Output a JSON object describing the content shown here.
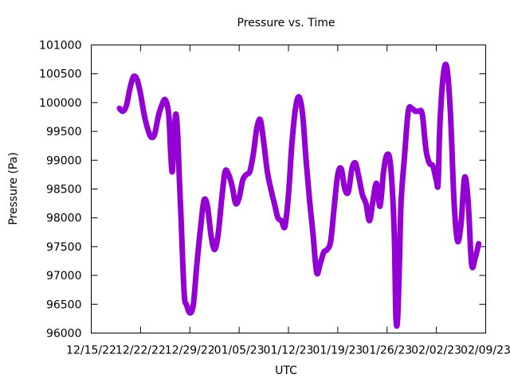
{
  "chart_data": {
    "type": "line",
    "title": "Pressure vs. Time",
    "xlabel": "UTC",
    "ylabel": "Pressure (Pa)",
    "ylim": [
      96000,
      101000
    ],
    "yticks": [
      96000,
      96500,
      97000,
      97500,
      98000,
      98500,
      99000,
      99500,
      100000,
      100500,
      101000
    ],
    "xlim": [
      "2022-12-15",
      "2023-02-09"
    ],
    "xticks": [
      {
        "date": "2022-12-15",
        "label": "12/15/22"
      },
      {
        "date": "2022-12-22",
        "label": "12/22/22"
      },
      {
        "date": "2022-12-29",
        "label": "12/29/22"
      },
      {
        "date": "2023-01-05",
        "label": "01/05/23"
      },
      {
        "date": "2023-01-12",
        "label": "01/12/23"
      },
      {
        "date": "2023-01-19",
        "label": "01/19/23"
      },
      {
        "date": "2023-01-26",
        "label": "01/26/23"
      },
      {
        "date": "2023-02-02",
        "label": "02/02/23"
      },
      {
        "date": "2023-02-09",
        "label": "02/09/23"
      }
    ],
    "grid": false,
    "series": [
      {
        "color": "#9400d3",
        "points": [
          [
            "2022-12-19T00:00",
            99900
          ],
          [
            "2022-12-19T12:00",
            99850
          ],
          [
            "2022-12-20T00:00",
            99950
          ],
          [
            "2022-12-20T12:00",
            100250
          ],
          [
            "2022-12-21T00:00",
            100450
          ],
          [
            "2022-12-21T12:00",
            100400
          ],
          [
            "2022-12-22T00:00",
            100150
          ],
          [
            "2022-12-22T12:00",
            99800
          ],
          [
            "2022-12-23T00:00",
            99550
          ],
          [
            "2022-12-23T12:00",
            99400
          ],
          [
            "2022-12-24T00:00",
            99450
          ],
          [
            "2022-12-24T12:00",
            99750
          ],
          [
            "2022-12-25T00:00",
            99950
          ],
          [
            "2022-12-25T12:00",
            100050
          ],
          [
            "2022-12-26T00:00",
            99800
          ],
          [
            "2022-12-26T06:00",
            99200
          ],
          [
            "2022-12-26T12:00",
            98800
          ],
          [
            "2022-12-26T18:00",
            99400
          ],
          [
            "2022-12-27T00:00",
            99800
          ],
          [
            "2022-12-27T06:00",
            99500
          ],
          [
            "2022-12-27T12:00",
            98700
          ],
          [
            "2022-12-27T18:00",
            98000
          ],
          [
            "2022-12-28T00:00",
            97200
          ],
          [
            "2022-12-28T06:00",
            96600
          ],
          [
            "2022-12-28T12:00",
            96500
          ],
          [
            "2022-12-29T00:00",
            96350
          ],
          [
            "2022-12-29T12:00",
            96500
          ],
          [
            "2022-12-30T00:00",
            97200
          ],
          [
            "2022-12-30T12:00",
            97800
          ],
          [
            "2022-12-31T00:00",
            98300
          ],
          [
            "2022-12-31T12:00",
            98200
          ],
          [
            "2023-01-01T00:00",
            97700
          ],
          [
            "2023-01-01T12:00",
            97450
          ],
          [
            "2023-01-02T00:00",
            97700
          ],
          [
            "2023-01-02T12:00",
            98300
          ],
          [
            "2023-01-03T00:00",
            98800
          ],
          [
            "2023-01-03T12:00",
            98750
          ],
          [
            "2023-01-04T00:00",
            98550
          ],
          [
            "2023-01-04T12:00",
            98250
          ],
          [
            "2023-01-05T00:00",
            98350
          ],
          [
            "2023-01-05T12:00",
            98650
          ],
          [
            "2023-01-06T00:00",
            98750
          ],
          [
            "2023-01-06T12:00",
            98800
          ],
          [
            "2023-01-07T00:00",
            99100
          ],
          [
            "2023-01-07T12:00",
            99550
          ],
          [
            "2023-01-08T00:00",
            99700
          ],
          [
            "2023-01-08T12:00",
            99300
          ],
          [
            "2023-01-09T00:00",
            98800
          ],
          [
            "2023-01-09T12:00",
            98500
          ],
          [
            "2023-01-10T00:00",
            98250
          ],
          [
            "2023-01-10T12:00",
            98000
          ],
          [
            "2023-01-11T00:00",
            97950
          ],
          [
            "2023-01-11T12:00",
            97850
          ],
          [
            "2023-01-12T00:00",
            98400
          ],
          [
            "2023-01-12T12:00",
            99300
          ],
          [
            "2023-01-13T00:00",
            99900
          ],
          [
            "2023-01-13T12:00",
            100100
          ],
          [
            "2023-01-14T00:00",
            99800
          ],
          [
            "2023-01-14T12:00",
            99000
          ],
          [
            "2023-01-15T00:00",
            98300
          ],
          [
            "2023-01-15T12:00",
            97700
          ],
          [
            "2023-01-16T00:00",
            97050
          ],
          [
            "2023-01-16T12:00",
            97200
          ],
          [
            "2023-01-17T00:00",
            97400
          ],
          [
            "2023-01-17T12:00",
            97450
          ],
          [
            "2023-01-18T00:00",
            97600
          ],
          [
            "2023-01-18T12:00",
            98200
          ],
          [
            "2023-01-19T00:00",
            98750
          ],
          [
            "2023-01-19T12:00",
            98850
          ],
          [
            "2023-01-20T00:00",
            98500
          ],
          [
            "2023-01-20T12:00",
            98450
          ],
          [
            "2023-01-21T00:00",
            98850
          ],
          [
            "2023-01-21T12:00",
            98950
          ],
          [
            "2023-01-22T00:00",
            98700
          ],
          [
            "2023-01-22T12:00",
            98400
          ],
          [
            "2023-01-23T00:00",
            98250
          ],
          [
            "2023-01-23T12:00",
            97950
          ],
          [
            "2023-01-24T00:00",
            98300
          ],
          [
            "2023-01-24T12:00",
            98600
          ],
          [
            "2023-01-25T00:00",
            98200
          ],
          [
            "2023-01-25T12:00",
            98800
          ],
          [
            "2023-01-26T00:00",
            99100
          ],
          [
            "2023-01-26T12:00",
            98900
          ],
          [
            "2023-01-27T00:00",
            97800
          ],
          [
            "2023-01-27T06:00",
            96300
          ],
          [
            "2023-01-27T12:00",
            96250
          ],
          [
            "2023-01-27T18:00",
            97200
          ],
          [
            "2023-01-28T00:00",
            98300
          ],
          [
            "2023-01-28T12:00",
            99100
          ],
          [
            "2023-01-29T00:00",
            99850
          ],
          [
            "2023-01-29T12:00",
            99900
          ],
          [
            "2023-01-30T00:00",
            99850
          ],
          [
            "2023-01-30T12:00",
            99850
          ],
          [
            "2023-01-31T00:00",
            99800
          ],
          [
            "2023-01-31T12:00",
            99200
          ],
          [
            "2023-02-01T00:00",
            98950
          ],
          [
            "2023-02-01T12:00",
            98900
          ],
          [
            "2023-02-02T00:00",
            98650
          ],
          [
            "2023-02-02T06:00",
            98600
          ],
          [
            "2023-02-02T12:00",
            99600
          ],
          [
            "2023-02-03T00:00",
            100500
          ],
          [
            "2023-02-03T12:00",
            100600
          ],
          [
            "2023-02-04T00:00",
            99800
          ],
          [
            "2023-02-04T12:00",
            98300
          ],
          [
            "2023-02-05T00:00",
            97600
          ],
          [
            "2023-02-05T12:00",
            97900
          ],
          [
            "2023-02-06T00:00",
            98700
          ],
          [
            "2023-02-06T12:00",
            98300
          ],
          [
            "2023-02-07T00:00",
            97200
          ],
          [
            "2023-02-07T12:00",
            97300
          ],
          [
            "2023-02-08T00:00",
            97550
          ]
        ]
      }
    ]
  }
}
